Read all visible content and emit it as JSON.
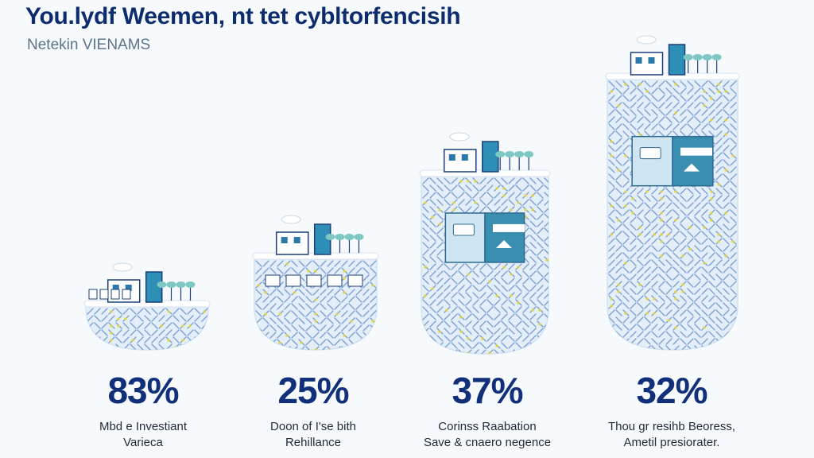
{
  "header": {
    "title": "You.lydf Weemen, nt tet cybltorfencisih",
    "subtitle": "Netekin VIENAMS"
  },
  "colors": {
    "accent": "#0d2c6e",
    "vessel_fill": "#e3eef8",
    "pattern_blue": "#5b86c6",
    "pattern_yellow": "#e6d23a",
    "panel_teal": "#3a8fb0",
    "panel_light": "#cfe6f2"
  },
  "panels": [
    {
      "percent": "83%",
      "caption_line1": "Mbd e Investiant",
      "caption_line2": "Varieca",
      "fill_level": 0.83
    },
    {
      "percent": "25%",
      "caption_line1": "Doon of I'se bith",
      "caption_line2": "Rehillance",
      "fill_level": 0.25
    },
    {
      "percent": "37%",
      "caption_line1": "Corinss Raabation",
      "caption_line2": "Save & cnaero negence",
      "fill_level": 0.37
    },
    {
      "percent": "32%",
      "caption_line1": "Thou gr resihb Beoress,",
      "caption_line2": "Ametil presiorater.",
      "fill_level": 0.32
    }
  ]
}
